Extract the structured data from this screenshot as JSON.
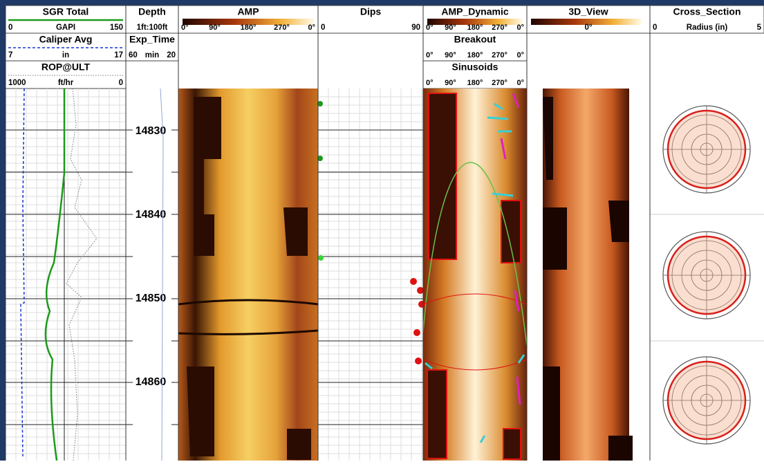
{
  "tracks": [
    {
      "rows": [
        {
          "title": "SGR Total",
          "scale": [
            "0",
            "GAPI",
            "150"
          ]
        },
        {
          "title": "Caliper Avg",
          "scale": [
            "7",
            "in",
            "17"
          ]
        },
        {
          "title": "ROP@ULT",
          "scale": [
            "1000",
            "ft/hr",
            "0"
          ]
        }
      ]
    },
    {
      "rows": [
        {
          "title": "Depth",
          "scale": [
            "1ft:100ft"
          ]
        },
        {
          "title": "Exp_Time",
          "scale": [
            "60",
            "min",
            "20"
          ]
        }
      ]
    },
    {
      "rows": [
        {
          "title": "AMP",
          "scale": [
            "0°",
            "90°",
            "180°",
            "270°",
            "0°"
          ]
        }
      ]
    },
    {
      "rows": [
        {
          "title": "Dips",
          "scale": [
            "0",
            "90"
          ]
        }
      ]
    },
    {
      "rows": [
        {
          "title": "AMP_Dynamic",
          "scale": [
            "0°",
            "90°",
            "180°",
            "270°",
            "0°"
          ]
        },
        {
          "title": "Breakout",
          "scale": [
            "0°",
            "90°",
            "180°",
            "270°",
            "0°"
          ]
        },
        {
          "title": "Sinusoids",
          "scale": [
            "0°",
            "90°",
            "180°",
            "270°",
            "0°"
          ]
        }
      ]
    },
    {
      "rows": [
        {
          "title": "3D_View",
          "scale": [
            "0°"
          ]
        }
      ]
    },
    {
      "rows": [
        {
          "title": "Cross_Section",
          "scale": [
            "0",
            "Radius (in)",
            "5"
          ]
        }
      ]
    }
  ],
  "depths": [
    "14830",
    "14840",
    "14850",
    "14860"
  ]
}
